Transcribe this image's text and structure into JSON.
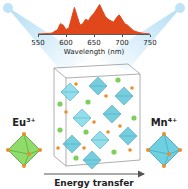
{
  "chart_data": {
    "type": "line",
    "x_label": "Wavelength (nm)",
    "x": [
      550,
      555,
      560,
      565,
      570,
      575,
      580,
      585,
      590,
      595,
      600,
      605,
      610,
      615,
      620,
      625,
      630,
      635,
      640,
      645,
      650,
      655,
      660,
      665,
      670,
      675,
      680,
      685,
      690,
      695,
      700,
      705,
      710,
      715,
      720,
      725,
      730,
      735,
      740,
      745,
      750
    ],
    "values": [
      0,
      0,
      0,
      0,
      0.02,
      0.03,
      0.08,
      0.15,
      0.35,
      0.3,
      0.15,
      0.2,
      0.55,
      0.9,
      0.6,
      0.3,
      0.35,
      0.5,
      0.45,
      0.6,
      0.7,
      0.85,
      1.0,
      0.8,
      0.6,
      0.5,
      0.45,
      0.4,
      0.55,
      0.65,
      0.5,
      0.35,
      0.3,
      0.2,
      0.12,
      0.08,
      0.05,
      0.03,
      0.02,
      0.01,
      0
    ],
    "xlim": [
      550,
      750
    ],
    "xticks": [
      550,
      600,
      650,
      700,
      750
    ],
    "ylim": [
      0,
      1.05
    ],
    "tick_labels": "x",
    "color": "#e0481c"
  },
  "diagram": {
    "left_ion": "Eu³⁺",
    "right_ion": "Mn⁴⁺",
    "arrow_label": "Energy transfer"
  }
}
